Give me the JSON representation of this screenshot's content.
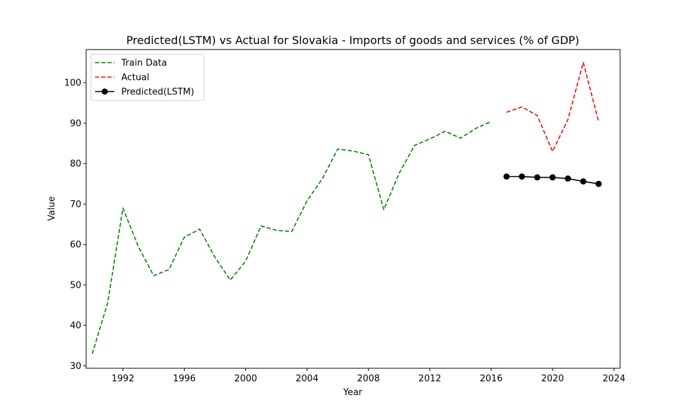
{
  "chart_data": {
    "type": "line",
    "title": "Predicted(LSTM) vs Actual for Slovakia - Imports of goods and services (% of GDP)",
    "xlabel": "Year",
    "ylabel": "Value",
    "xlim": [
      1989.6,
      2024.4
    ],
    "ylim": [
      29.4,
      108.2
    ],
    "xticks": [
      1992,
      1996,
      2000,
      2004,
      2008,
      2012,
      2016,
      2020,
      2024
    ],
    "yticks": [
      30,
      40,
      50,
      60,
      70,
      80,
      90,
      100
    ],
    "legend_position": "top-left",
    "series": [
      {
        "name": "Train Data",
        "color": "#008000",
        "style": "dashed",
        "marker": "none",
        "x": [
          1990,
          1991,
          1992,
          1993,
          1994,
          1995,
          1996,
          1997,
          1998,
          1999,
          2000,
          2001,
          2002,
          2003,
          2004,
          2005,
          2006,
          2007,
          2008,
          2009,
          2010,
          2011,
          2012,
          2013,
          2014,
          2015,
          2016
        ],
        "y": [
          33.0,
          45.5,
          69.0,
          59.5,
          52.3,
          53.8,
          61.8,
          63.8,
          56.8,
          51.2,
          55.9,
          64.6,
          63.5,
          63.2,
          70.8,
          76.3,
          83.6,
          83.1,
          82.2,
          68.6,
          77.6,
          84.5,
          86.1,
          88.0,
          86.3,
          88.7,
          90.4
        ]
      },
      {
        "name": "Actual",
        "color": "#ff0000",
        "style": "dashed",
        "marker": "none",
        "x": [
          2017,
          2018,
          2019,
          2020,
          2021,
          2022,
          2023
        ],
        "y": [
          92.7,
          94.0,
          91.9,
          83.0,
          90.9,
          105.0,
          90.4
        ]
      },
      {
        "name": "Predicted(LSTM)",
        "color": "#000000",
        "style": "solid",
        "marker": "circle",
        "x": [
          2017,
          2018,
          2019,
          2020,
          2021,
          2022,
          2023
        ],
        "y": [
          76.8,
          76.8,
          76.6,
          76.6,
          76.3,
          75.6,
          75.0
        ]
      }
    ]
  }
}
